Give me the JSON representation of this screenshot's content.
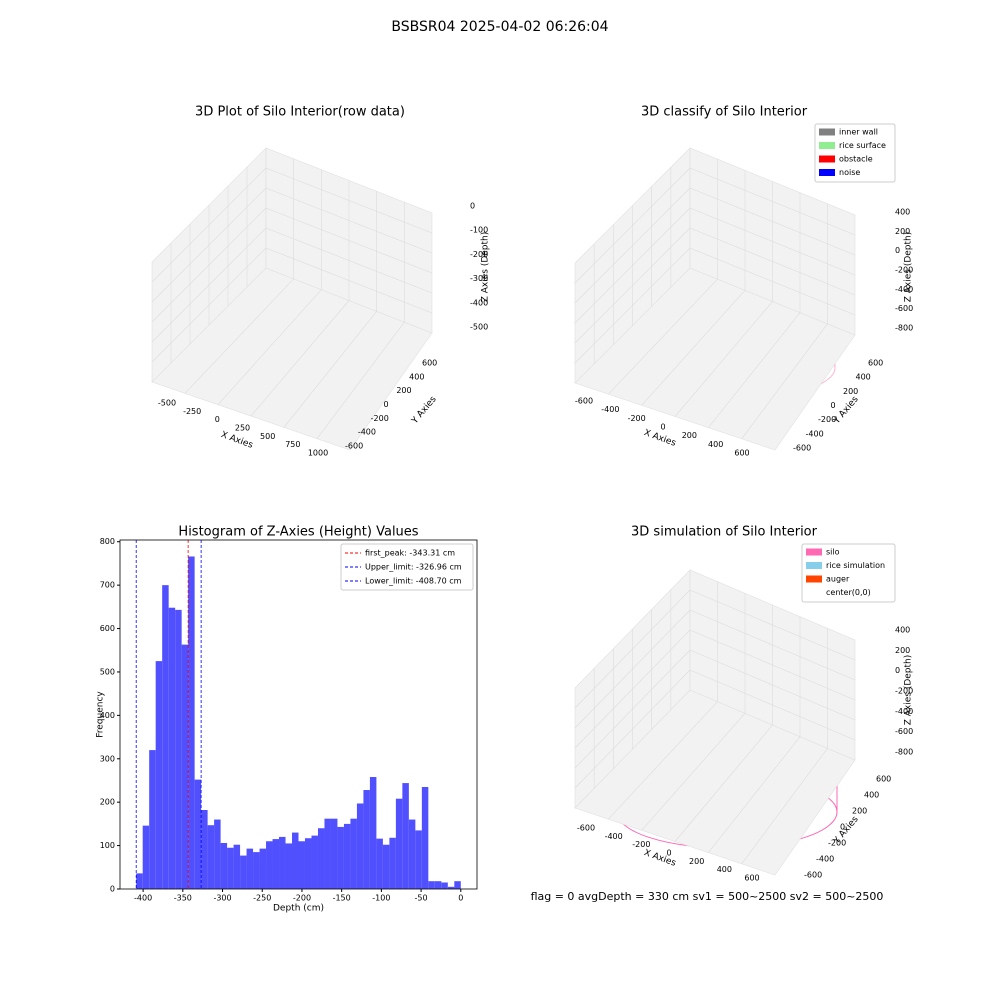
{
  "title": "BSBSR04 2025-04-02 06:26:04",
  "status": "flag = 0     avgDepth = 330 cm  sv1 = 500~2500  sv2 = 500~2500",
  "chart_data": [
    {
      "type": "scatter3d",
      "title": "3D Plot of Silo Interior(row data)",
      "xlabel": "X Axies",
      "ylabel": "Y Axies",
      "zlabel": "Z Axies (Depth)",
      "xticks": [
        -500,
        -250,
        0,
        250,
        500,
        750,
        1000
      ],
      "yticks": [
        -600,
        -400,
        -200,
        0,
        200,
        400,
        600
      ],
      "zticks": [
        0,
        -100,
        -200,
        -300,
        -400,
        -500
      ]
    },
    {
      "type": "scatter3d",
      "title": "3D classify of Silo Interior",
      "xlabel": "X Axies",
      "ylabel": "Y Axies",
      "zlabel": "Z Axies (Depth)",
      "xticks": [
        -600,
        -400,
        -200,
        0,
        200,
        400,
        600
      ],
      "yticks": [
        -600,
        -400,
        -200,
        0,
        200,
        400,
        600
      ],
      "zticks": [
        400,
        200,
        0,
        -200,
        -400,
        -600,
        -800
      ],
      "legend": [
        {
          "name": "inner wall",
          "color": "#808080"
        },
        {
          "name": "rice surface",
          "color": "#90ee90"
        },
        {
          "name": "obstacle",
          "color": "#ff0000"
        },
        {
          "name": "noise",
          "color": "#0000ff"
        }
      ]
    },
    {
      "type": "histogram",
      "title": "Histogram of Z-Axies (Height) Values",
      "xlabel": "Depth (cm)",
      "ylabel": "Frequency",
      "color": "#5050ff",
      "bins": [
        -408.7,
        -400.53,
        -392.35,
        -384.18,
        -376.0,
        -367.83,
        -359.66,
        -351.48,
        -343.31,
        -335.13,
        -326.96,
        -318.79,
        -310.61,
        -302.44,
        -294.26,
        -286.09,
        -277.92,
        -269.74,
        -261.57,
        -253.39,
        -245.22,
        -237.05,
        -228.87,
        -220.7,
        -212.52,
        -204.35,
        -196.18,
        -188.0,
        -179.83,
        -171.65,
        -163.48,
        -155.31,
        -147.13,
        -138.96,
        -130.78,
        -122.61,
        -114.44,
        -106.26,
        -98.09,
        -89.91,
        -81.74,
        -73.57,
        -65.39,
        -57.22,
        -49.04,
        -40.87,
        -32.7,
        -24.52,
        -16.35,
        -8.17,
        0
      ],
      "values": [
        36,
        146,
        320,
        525,
        700,
        648,
        643,
        563,
        766,
        252,
        182,
        147,
        160,
        106,
        95,
        102,
        77,
        93,
        85,
        93,
        110,
        115,
        120,
        105,
        130,
        110,
        117,
        123,
        140,
        162,
        162,
        143,
        150,
        162,
        197,
        228,
        258,
        116,
        102,
        118,
        208,
        244,
        160,
        135,
        235,
        18,
        18,
        15,
        5,
        18
      ],
      "xlim": [
        -429.1,
        20.4
      ],
      "ylim": [
        0,
        804
      ],
      "xticks": [
        -400,
        -350,
        -300,
        -250,
        -200,
        -150,
        -100,
        -50,
        0
      ],
      "yticks": [
        0,
        100,
        200,
        300,
        400,
        500,
        600,
        700,
        800
      ],
      "lines": [
        {
          "name": "first_peak: -343.31 cm",
          "value": -343.31,
          "color": "#ff0000"
        },
        {
          "name": "Upper_limit: -326.96 cm",
          "value": -326.96,
          "color": "#0000ff"
        },
        {
          "name": "Lower_limit: -408.70 cm",
          "value": -408.7,
          "color": "#0000ff"
        }
      ],
      "legend_position": "upper right"
    },
    {
      "type": "surface3d",
      "title": "3D simulation of Silo Interior",
      "xlabel": "X Axies",
      "ylabel": "Y Axies",
      "zlabel": "Z Axies (Depth)",
      "xticks": [
        -600,
        -400,
        -200,
        0,
        200,
        400,
        600
      ],
      "yticks": [
        -600,
        -400,
        -200,
        0,
        200,
        400,
        600
      ],
      "zticks": [
        400,
        200,
        0,
        -200,
        -400,
        -600,
        -800
      ],
      "legend": [
        {
          "name": "silo",
          "color": "#ff69b4"
        },
        {
          "name": "rice simulation",
          "color": "#87ceeb"
        },
        {
          "name": "auger",
          "color": "#ff4500"
        },
        {
          "name": "center(0,0)",
          "color": "#ffffff"
        }
      ]
    }
  ]
}
